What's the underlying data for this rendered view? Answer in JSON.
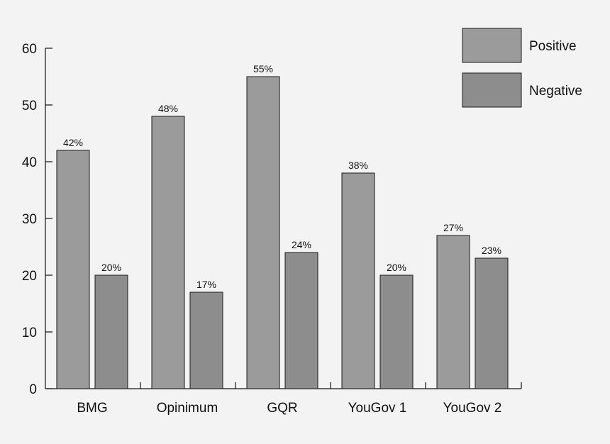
{
  "chart_data": {
    "type": "bar",
    "categories": [
      "BMG",
      "Opinimum",
      "GQR",
      "YouGov 1",
      "YouGov 2"
    ],
    "series": [
      {
        "name": "Positive",
        "values": [
          42,
          48,
          55,
          38,
          27
        ],
        "labels": [
          "42%",
          "48%",
          "55%",
          "38%",
          "27%"
        ],
        "color": "#9b9b9b"
      },
      {
        "name": "Negative",
        "values": [
          20,
          17,
          24,
          20,
          23
        ],
        "labels": [
          "20%",
          "17%",
          "24%",
          "20%",
          "23%"
        ],
        "color": "#8c8d8c"
      }
    ],
    "yticks": [
      "0",
      "10",
      "20",
      "30",
      "40",
      "50",
      "60"
    ],
    "ylim": [
      0,
      60
    ],
    "grid": false,
    "legend": "top-right"
  }
}
